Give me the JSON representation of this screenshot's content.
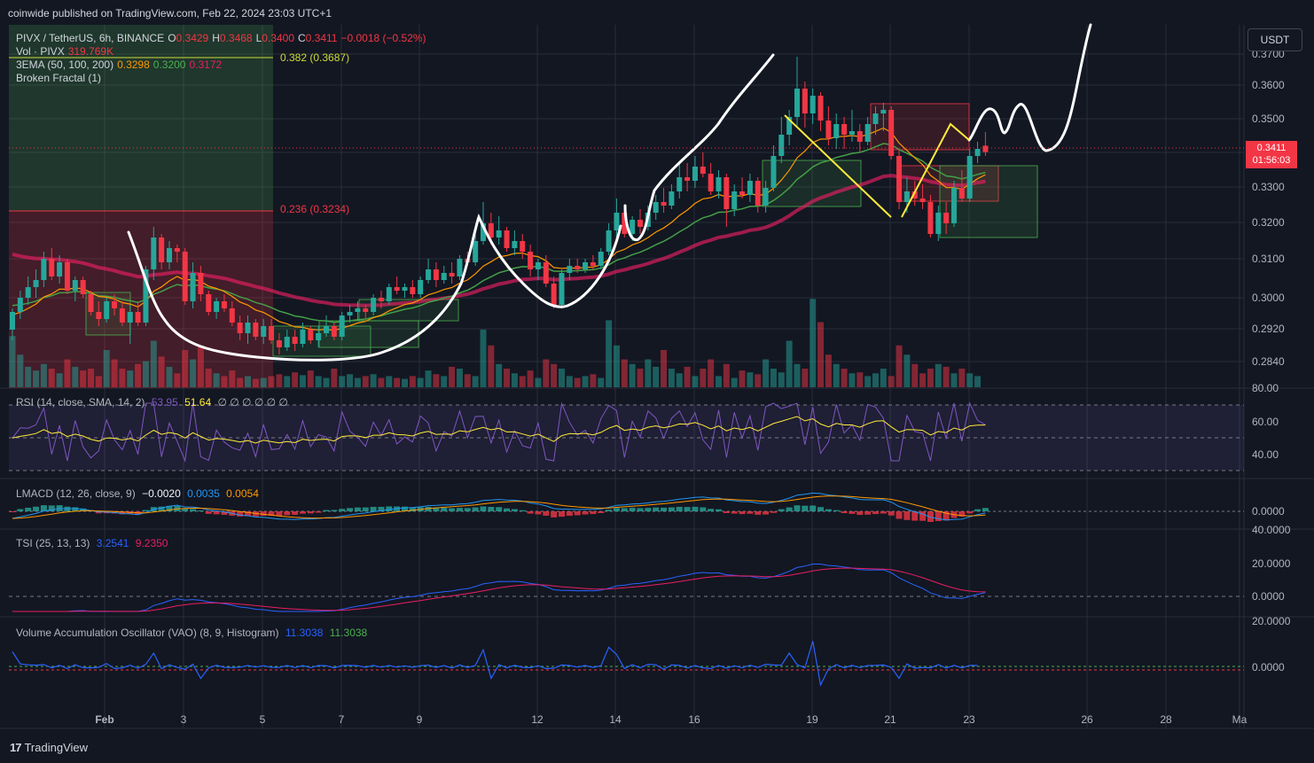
{
  "header": {
    "published": "coinwide published on TradingView.com, Feb 22, 2024 23:03 UTC+1"
  },
  "toolbar": {
    "currency_button": "USDT"
  },
  "legend": {
    "symbol": "PIVX / TetherUS, 6h, BINANCE",
    "o_label": "O",
    "o": "0.3429",
    "h_label": "H",
    "h": "0.3468",
    "l_label": "L",
    "l": "0.3400",
    "c_label": "C",
    "c": "0.3411",
    "change": "−0.0018 (−0.52%)",
    "vol_label": "Vol · PIVX",
    "vol": "319.769K",
    "ema_label": "3EMA (50, 100, 200)",
    "ema1": "0.3298",
    "ema2": "0.3200",
    "ema3": "0.3172",
    "fractal_label": "Broken Fractal (1)"
  },
  "fib": {
    "level1": "0.382 (0.3687)",
    "level2": "0.236 (0.3234)"
  },
  "last_price": {
    "value": "0.3411",
    "countdown": "01:56:03"
  },
  "colors": {
    "up": "#26a69a",
    "down": "#f23645",
    "bg": "#131722",
    "grid": "#2a2e39",
    "text": "#b2b5be"
  },
  "panes": {
    "rsi": {
      "label": "RSI (14, close, SMA, 14, 2)",
      "v1": "53.95",
      "v2": "51.64",
      "extra": "∅ ∅ ∅ ∅ ∅ ∅",
      "ticks": [
        "80.00",
        "60.00",
        "40.00"
      ]
    },
    "lmacd": {
      "label": "LMACD (12, 26, close, 9)",
      "v1": "−0.0020",
      "v2": "0.0035",
      "v3": "0.0054",
      "ticks": [
        "0.0000"
      ]
    },
    "tsi": {
      "label": "TSI (25, 13, 13)",
      "v1": "3.2541",
      "v2": "9.2350",
      "ticks": [
        "40.0000",
        "20.0000",
        "0.0000"
      ]
    },
    "vao": {
      "label": "Volume Accumulation Oscillator (VAO) (8, 9, Histogram)",
      "v1": "11.3038",
      "v2": "11.3038",
      "ticks": [
        "20.0000",
        "0.0000"
      ]
    }
  },
  "chart_data": {
    "type": "candlestick",
    "symbol": "PIVX / TetherUS",
    "interval": "6h",
    "price_ticks": [
      "0.3700",
      "0.3600",
      "0.3500",
      "0.3400",
      "0.3300",
      "0.3200",
      "0.3100",
      "0.3000",
      "0.2920",
      "0.2840"
    ],
    "x_ticks": [
      "Feb",
      "3",
      "5",
      "7",
      "9",
      "12",
      "14",
      "16",
      "19",
      "21",
      "23",
      "26",
      "28",
      "Ma"
    ],
    "fib_levels": [
      {
        "label": "0.382 (0.3687)",
        "value": 0.3687
      },
      {
        "label": "0.236 (0.3234)",
        "value": 0.3234
      }
    ],
    "candles": [
      [
        0.291,
        0.297,
        0.288,
        0.296
      ],
      [
        0.296,
        0.302,
        0.294,
        0.3
      ],
      [
        0.3,
        0.306,
        0.298,
        0.303
      ],
      [
        0.303,
        0.308,
        0.3,
        0.305
      ],
      [
        0.305,
        0.313,
        0.303,
        0.311
      ],
      [
        0.311,
        0.314,
        0.305,
        0.306
      ],
      [
        0.306,
        0.312,
        0.304,
        0.31
      ],
      [
        0.31,
        0.311,
        0.301,
        0.302
      ],
      [
        0.302,
        0.306,
        0.299,
        0.305
      ],
      [
        0.305,
        0.306,
        0.3,
        0.301
      ],
      [
        0.301,
        0.302,
        0.295,
        0.296
      ],
      [
        0.296,
        0.299,
        0.292,
        0.294
      ],
      [
        0.294,
        0.3,
        0.293,
        0.299
      ],
      [
        0.299,
        0.301,
        0.295,
        0.297
      ],
      [
        0.297,
        0.299,
        0.292,
        0.293
      ],
      [
        0.293,
        0.298,
        0.287,
        0.296
      ],
      [
        0.296,
        0.299,
        0.292,
        0.293
      ],
      [
        0.293,
        0.309,
        0.292,
        0.308
      ],
      [
        0.308,
        0.32,
        0.305,
        0.317
      ],
      [
        0.317,
        0.318,
        0.308,
        0.31
      ],
      [
        0.31,
        0.316,
        0.308,
        0.314
      ],
      [
        0.314,
        0.315,
        0.31,
        0.313
      ],
      [
        0.313,
        0.314,
        0.298,
        0.299
      ],
      [
        0.299,
        0.31,
        0.297,
        0.307
      ],
      [
        0.307,
        0.309,
        0.299,
        0.301
      ],
      [
        0.301,
        0.302,
        0.295,
        0.296
      ],
      [
        0.296,
        0.3,
        0.294,
        0.299
      ],
      [
        0.299,
        0.301,
        0.296,
        0.297
      ],
      [
        0.297,
        0.299,
        0.292,
        0.293
      ],
      [
        0.293,
        0.295,
        0.288,
        0.29
      ],
      [
        0.29,
        0.295,
        0.287,
        0.293
      ],
      [
        0.293,
        0.294,
        0.288,
        0.289
      ],
      [
        0.289,
        0.294,
        0.287,
        0.292
      ],
      [
        0.292,
        0.294,
        0.287,
        0.288
      ],
      [
        0.288,
        0.29,
        0.284,
        0.286
      ],
      [
        0.286,
        0.291,
        0.285,
        0.289
      ],
      [
        0.289,
        0.291,
        0.285,
        0.287
      ],
      [
        0.287,
        0.293,
        0.286,
        0.291
      ],
      [
        0.291,
        0.292,
        0.287,
        0.288
      ],
      [
        0.288,
        0.292,
        0.286,
        0.29
      ],
      [
        0.29,
        0.295,
        0.289,
        0.292
      ],
      [
        0.292,
        0.293,
        0.288,
        0.289
      ],
      [
        0.289,
        0.296,
        0.288,
        0.295
      ],
      [
        0.295,
        0.298,
        0.293,
        0.296
      ],
      [
        0.296,
        0.299,
        0.294,
        0.297
      ],
      [
        0.297,
        0.298,
        0.294,
        0.296
      ],
      [
        0.296,
        0.301,
        0.295,
        0.3
      ],
      [
        0.3,
        0.302,
        0.297,
        0.299
      ],
      [
        0.299,
        0.304,
        0.298,
        0.303
      ],
      [
        0.303,
        0.306,
        0.301,
        0.302
      ],
      [
        0.302,
        0.304,
        0.3,
        0.303
      ],
      [
        0.303,
        0.305,
        0.3,
        0.301
      ],
      [
        0.301,
        0.306,
        0.3,
        0.305
      ],
      [
        0.305,
        0.311,
        0.304,
        0.308
      ],
      [
        0.308,
        0.31,
        0.303,
        0.305
      ],
      [
        0.305,
        0.309,
        0.304,
        0.307
      ],
      [
        0.307,
        0.31,
        0.304,
        0.306
      ],
      [
        0.306,
        0.312,
        0.305,
        0.311
      ],
      [
        0.311,
        0.313,
        0.309,
        0.31
      ],
      [
        0.31,
        0.318,
        0.309,
        0.316
      ],
      [
        0.316,
        0.327,
        0.315,
        0.321
      ],
      [
        0.321,
        0.324,
        0.315,
        0.317
      ],
      [
        0.317,
        0.323,
        0.315,
        0.319
      ],
      [
        0.319,
        0.32,
        0.313,
        0.314
      ],
      [
        0.314,
        0.319,
        0.312,
        0.316
      ],
      [
        0.316,
        0.318,
        0.311,
        0.313
      ],
      [
        0.313,
        0.315,
        0.306,
        0.308
      ],
      [
        0.308,
        0.311,
        0.305,
        0.31
      ],
      [
        0.31,
        0.312,
        0.303,
        0.304
      ],
      [
        0.304,
        0.306,
        0.297,
        0.298
      ],
      [
        0.298,
        0.308,
        0.297,
        0.307
      ],
      [
        0.307,
        0.311,
        0.305,
        0.309
      ],
      [
        0.309,
        0.311,
        0.307,
        0.308
      ],
      [
        0.308,
        0.311,
        0.307,
        0.31
      ],
      [
        0.31,
        0.312,
        0.308,
        0.309
      ],
      [
        0.309,
        0.314,
        0.308,
        0.313
      ],
      [
        0.313,
        0.321,
        0.312,
        0.319
      ],
      [
        0.319,
        0.328,
        0.317,
        0.324
      ],
      [
        0.324,
        0.326,
        0.317,
        0.318
      ],
      [
        0.318,
        0.323,
        0.316,
        0.322
      ],
      [
        0.322,
        0.325,
        0.318,
        0.32
      ],
      [
        0.32,
        0.326,
        0.319,
        0.324
      ],
      [
        0.324,
        0.329,
        0.322,
        0.327
      ],
      [
        0.327,
        0.331,
        0.324,
        0.326
      ],
      [
        0.326,
        0.332,
        0.325,
        0.33
      ],
      [
        0.33,
        0.338,
        0.328,
        0.334
      ],
      [
        0.334,
        0.338,
        0.33,
        0.333
      ],
      [
        0.333,
        0.34,
        0.331,
        0.337
      ],
      [
        0.337,
        0.341,
        0.334,
        0.335
      ],
      [
        0.335,
        0.338,
        0.329,
        0.33
      ],
      [
        0.33,
        0.336,
        0.328,
        0.334
      ],
      [
        0.334,
        0.335,
        0.32,
        0.325
      ],
      [
        0.325,
        0.332,
        0.323,
        0.33
      ],
      [
        0.33,
        0.334,
        0.328,
        0.329
      ],
      [
        0.329,
        0.335,
        0.327,
        0.333
      ],
      [
        0.333,
        0.334,
        0.324,
        0.326
      ],
      [
        0.326,
        0.333,
        0.324,
        0.331
      ],
      [
        0.331,
        0.343,
        0.33,
        0.34
      ],
      [
        0.34,
        0.351,
        0.338,
        0.346
      ],
      [
        0.346,
        0.353,
        0.343,
        0.351
      ],
      [
        0.351,
        0.368,
        0.348,
        0.359
      ],
      [
        0.359,
        0.361,
        0.348,
        0.352
      ],
      [
        0.352,
        0.359,
        0.349,
        0.357
      ],
      [
        0.357,
        0.358,
        0.347,
        0.35
      ],
      [
        0.35,
        0.354,
        0.343,
        0.345
      ],
      [
        0.345,
        0.352,
        0.342,
        0.349
      ],
      [
        0.349,
        0.351,
        0.342,
        0.346
      ],
      [
        0.346,
        0.353,
        0.344,
        0.347
      ],
      [
        0.347,
        0.349,
        0.341,
        0.344
      ],
      [
        0.344,
        0.351,
        0.343,
        0.349
      ],
      [
        0.349,
        0.354,
        0.346,
        0.352
      ],
      [
        0.352,
        0.355,
        0.347,
        0.353
      ],
      [
        0.353,
        0.354,
        0.339,
        0.34
      ],
      [
        0.34,
        0.342,
        0.325,
        0.327
      ],
      [
        0.327,
        0.334,
        0.324,
        0.33
      ],
      [
        0.33,
        0.333,
        0.326,
        0.328
      ],
      [
        0.328,
        0.332,
        0.325,
        0.327
      ],
      [
        0.327,
        0.329,
        0.317,
        0.318
      ],
      [
        0.318,
        0.326,
        0.316,
        0.324
      ],
      [
        0.324,
        0.327,
        0.318,
        0.321
      ],
      [
        0.321,
        0.333,
        0.32,
        0.331
      ],
      [
        0.331,
        0.336,
        0.327,
        0.328
      ],
      [
        0.328,
        0.342,
        0.327,
        0.34
      ],
      [
        0.34,
        0.344,
        0.338,
        0.342
      ],
      [
        0.3429,
        0.3468,
        0.34,
        0.3411
      ]
    ],
    "volume": [
      0.55,
      0.35,
      0.22,
      0.18,
      0.25,
      0.2,
      0.15,
      0.3,
      0.22,
      0.18,
      0.2,
      0.12,
      0.4,
      0.3,
      0.2,
      0.18,
      0.25,
      0.28,
      0.5,
      0.33,
      0.22,
      0.15,
      0.4,
      0.3,
      0.45,
      0.2,
      0.15,
      0.12,
      0.18,
      0.1,
      0.12,
      0.09,
      0.1,
      0.12,
      0.14,
      0.12,
      0.16,
      0.13,
      0.18,
      0.12,
      0.1,
      0.2,
      0.12,
      0.14,
      0.1,
      0.12,
      0.14,
      0.1,
      0.12,
      0.1,
      0.09,
      0.12,
      0.1,
      0.18,
      0.14,
      0.12,
      0.22,
      0.2,
      0.14,
      0.12,
      0.62,
      0.45,
      0.25,
      0.2,
      0.15,
      0.12,
      0.18,
      0.1,
      0.3,
      0.25,
      0.2,
      0.12,
      0.1,
      0.12,
      0.14,
      0.1,
      0.72,
      0.45,
      0.3,
      0.25,
      0.2,
      0.3,
      0.22,
      0.4,
      0.2,
      0.15,
      0.22,
      0.12,
      0.2,
      0.3,
      0.12,
      0.25,
      0.1,
      0.18,
      0.16,
      0.14,
      0.3,
      0.2,
      0.16,
      0.5,
      0.25,
      0.2,
      0.95,
      0.7,
      0.35,
      0.25,
      0.2,
      0.15,
      0.16,
      0.12,
      0.15,
      0.2,
      0.12,
      0.45,
      0.35,
      0.25,
      0.15,
      0.2,
      0.25,
      0.22,
      0.15,
      0.2,
      0.15,
      0.12
    ]
  }
}
